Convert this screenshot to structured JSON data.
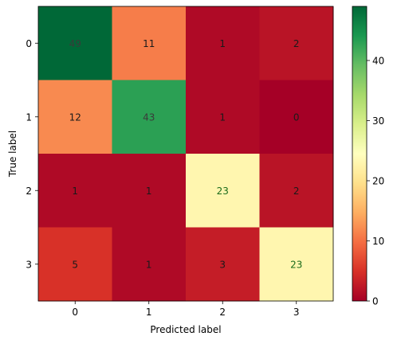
{
  "chart_data": {
    "type": "heatmap",
    "title": "",
    "xlabel": "Predicted label",
    "ylabel": "True label",
    "x_categories": [
      "0",
      "1",
      "2",
      "3"
    ],
    "y_categories": [
      "0",
      "1",
      "2",
      "3"
    ],
    "matrix": [
      [
        49,
        11,
        1,
        2
      ],
      [
        12,
        43,
        1,
        0
      ],
      [
        1,
        1,
        23,
        2
      ],
      [
        5,
        1,
        3,
        23
      ]
    ],
    "colormap": "RdYlGn",
    "vmin": 0,
    "vmax": 49,
    "colorbar_ticks": [
      0,
      10,
      20,
      30,
      40
    ],
    "text_colors": {
      "dark_cell": "#1a1a1a",
      "light_cell": "#1a6b1a",
      "dark_green_cell": "#3a3a3a"
    }
  }
}
